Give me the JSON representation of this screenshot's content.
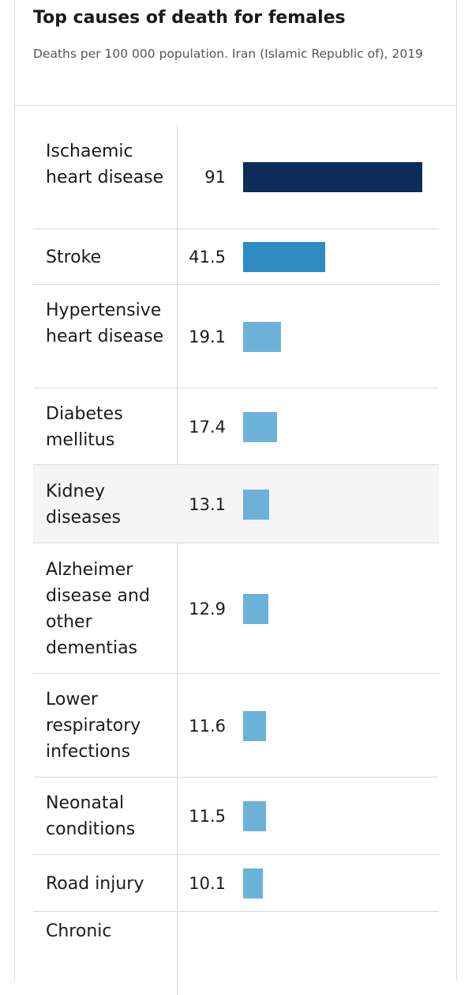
{
  "chart_data": {
    "type": "bar",
    "orientation": "horizontal",
    "title": "Top causes of death for females",
    "subtitle": "Deaths per 100 000 population. Iran (Islamic Republic of), 2019",
    "categories": [
      "Ischaemic heart disease",
      "Stroke",
      "Hypertensive heart disease",
      "Diabetes mellitus",
      "Kidney diseases",
      "Alzheimer disease and other dementias",
      "Lower respiratory infections",
      "Neonatal conditions",
      "Road injury",
      "Chronic"
    ],
    "values": [
      91,
      41.5,
      19.1,
      17.4,
      13.1,
      12.9,
      11.6,
      11.5,
      10.1,
      null
    ],
    "value_labels": [
      "91",
      "41.5",
      "19.1",
      "17.4",
      "13.1",
      "12.9",
      "11.6",
      "11.5",
      "10.1",
      ""
    ],
    "bar_colors": [
      "#0e2c5a",
      "#2e8bc4",
      "#6cb1d8",
      "#6cb1d8",
      "#6cb1d8",
      "#6cb1d8",
      "#6cb1d8",
      "#6cb1d8",
      "#6cb1d8",
      "#6cb1d8"
    ],
    "highlighted_row": "Kidney diseases",
    "xlim": [
      0,
      91
    ],
    "grid": false,
    "legend": "none"
  }
}
